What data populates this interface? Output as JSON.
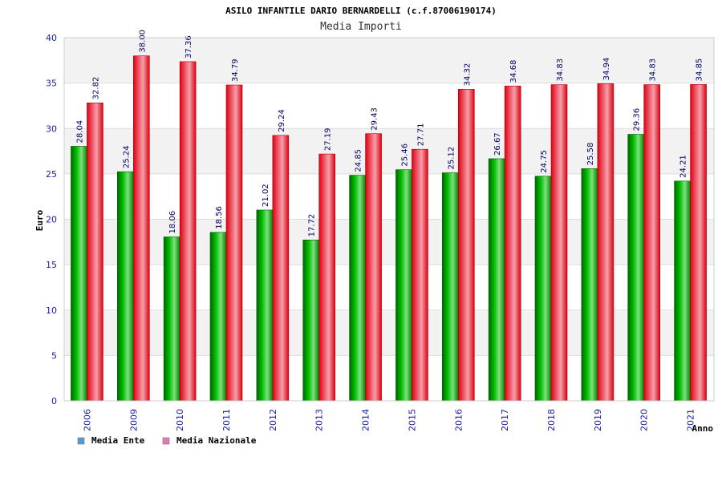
{
  "chart_data": {
    "type": "bar",
    "title": "ASILO INFANTILE DARIO BERNARDELLI (c.f.87006190174)",
    "subtitle": "Media Importi",
    "xlabel": "Anno",
    "ylabel": "Euro",
    "ylim": [
      0,
      40
    ],
    "yticks": [
      0,
      5,
      10,
      15,
      20,
      25,
      30,
      35,
      40
    ],
    "categories": [
      "2006",
      "2009",
      "2010",
      "2011",
      "2012",
      "2013",
      "2014",
      "2015",
      "2016",
      "2017",
      "2018",
      "2019",
      "2020",
      "2021"
    ],
    "series": [
      {
        "name": "Media Ente",
        "values": [
          28.04,
          25.24,
          18.06,
          18.56,
          21.02,
          17.72,
          24.85,
          25.46,
          25.12,
          26.67,
          24.75,
          25.58,
          29.36,
          24.21
        ],
        "labels": [
          "28.04",
          "25.24",
          "18.06",
          "18.56",
          "21.02",
          "17.72",
          "24.85",
          "25.46",
          "25.12",
          "26.67",
          "24.75",
          "25.58",
          "29.36",
          "24.21"
        ],
        "color": "#00b000",
        "legend_color": "#5b9bd5"
      },
      {
        "name": "Media Nazionale",
        "values": [
          32.82,
          38.0,
          37.36,
          34.79,
          29.24,
          27.19,
          29.43,
          27.71,
          34.32,
          34.68,
          34.83,
          34.94,
          34.83,
          34.85
        ],
        "labels": [
          "32.82",
          "38.00",
          "37.36",
          "34.79",
          "29.24",
          "27.19",
          "29.43",
          "27.71",
          "34.32",
          "34.68",
          "34.83",
          "34.94",
          "34.83",
          "34.85"
        ],
        "color": "#f01020",
        "legend_color": "#e07ab0"
      }
    ],
    "grid": true,
    "legend_position": "bottom-left"
  }
}
